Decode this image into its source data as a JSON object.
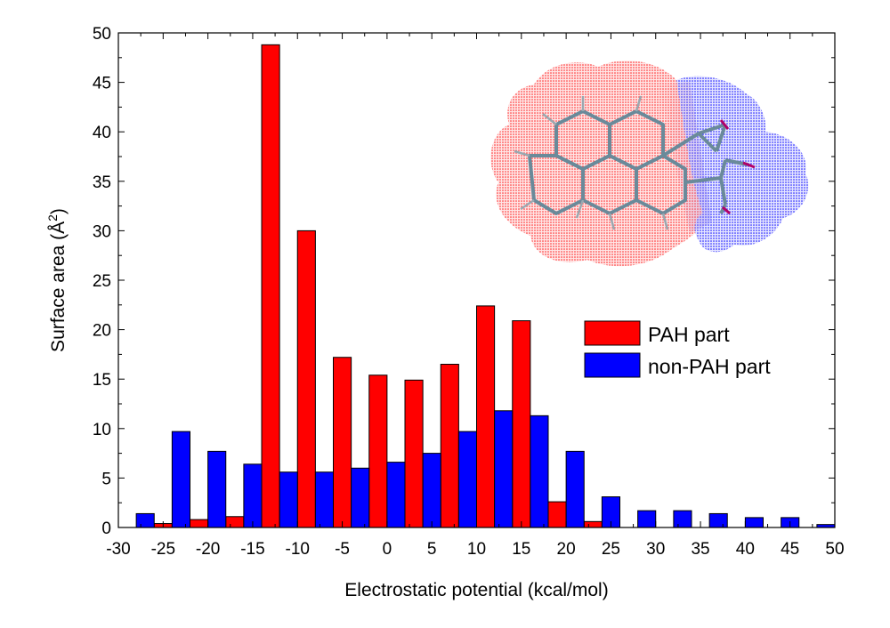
{
  "chart_data": {
    "type": "bar",
    "xlabel": "Electrostatic potential (kcal/mol)",
    "ylabel": "Surface area (",
    "ylabel_unit": "Å",
    "ylabel_exp": "2",
    "ylabel_close": ")",
    "xlim": [
      -30,
      50
    ],
    "ylim": [
      0,
      50
    ],
    "xticks": [
      -30,
      -25,
      -20,
      -15,
      -10,
      -5,
      0,
      5,
      10,
      15,
      20,
      25,
      30,
      35,
      40,
      45,
      50
    ],
    "yticks": [
      0,
      5,
      10,
      15,
      20,
      25,
      30,
      35,
      40,
      45,
      50
    ],
    "bin_width": 4,
    "grid": false,
    "legend_position": "right",
    "colors": {
      "pah": "#ff0000",
      "non_pah": "#0000ff"
    },
    "series": [
      {
        "name": "PAH part",
        "color": "#ff0000",
        "x": [
          -25,
          -21,
          -17,
          -13,
          -9,
          -5,
          -1,
          3,
          7,
          11,
          15,
          19,
          23
        ],
        "values": [
          0.4,
          0.8,
          1.1,
          48.8,
          30.0,
          17.2,
          15.4,
          14.9,
          16.5,
          22.4,
          20.9,
          2.6,
          0.6
        ]
      },
      {
        "name": "non-PAH part",
        "color": "#0000ff",
        "x": [
          -27,
          -23,
          -19,
          -15,
          -11,
          -7,
          -3,
          1,
          5,
          9,
          13,
          17,
          21,
          25,
          29,
          33,
          37,
          41,
          45,
          49
        ],
        "values": [
          1.4,
          9.7,
          7.7,
          6.4,
          5.6,
          5.6,
          6.0,
          6.6,
          7.5,
          9.7,
          11.8,
          11.3,
          7.7,
          3.1,
          1.7,
          1.7,
          1.4,
          1.0,
          1.0,
          0.3
        ]
      }
    ],
    "inset": {
      "description_icon": "molecule-surface-inset"
    }
  }
}
